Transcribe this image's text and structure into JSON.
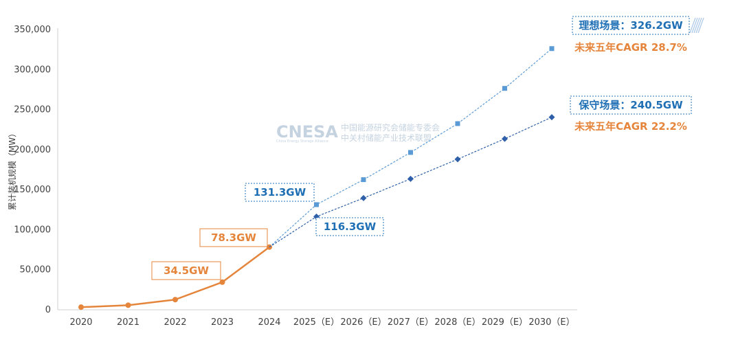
{
  "chart_data": {
    "type": "line",
    "ylabel": "累计装机规模（MW）",
    "ylim": [
      0,
      350000
    ],
    "yticks": [
      0,
      50000,
      100000,
      150000,
      200000,
      250000,
      300000,
      350000
    ],
    "ytick_labels": [
      "0",
      "50,000",
      "100,000",
      "150,000",
      "200,000",
      "250,000",
      "300,000",
      "350,000"
    ],
    "categories": [
      "2020",
      "2021",
      "2022",
      "2023",
      "2024",
      "2025（E）",
      "2026（E）",
      "2027（E）",
      "2028（E）",
      "2029（E）",
      "2030（E）"
    ],
    "series": [
      {
        "name": "historical",
        "color": "#e5853b",
        "style": "solid",
        "marker": "circle",
        "values": [
          3300,
          5700,
          12700,
          34500,
          78300,
          null,
          null,
          null,
          null,
          null,
          null
        ]
      },
      {
        "name": "ideal",
        "color": "#5b9bd5",
        "style": "dashed",
        "marker": "square",
        "values": [
          null,
          null,
          null,
          null,
          78300,
          131300,
          162500,
          196500,
          232500,
          276500,
          326200
        ]
      },
      {
        "name": "conservative",
        "color": "#2e5fa8",
        "style": "dashed",
        "marker": "diamond",
        "values": [
          null,
          null,
          null,
          null,
          78300,
          116300,
          139500,
          163500,
          188000,
          213500,
          240500
        ]
      }
    ],
    "annotations": [
      {
        "id": "hist-2023",
        "text": "34.5GW",
        "color": "#e5853b"
      },
      {
        "id": "hist-2024",
        "text": "78.3GW",
        "color": "#e5853b"
      },
      {
        "id": "ideal-2025",
        "text": "131.3GW",
        "color": "#1f6fb5"
      },
      {
        "id": "cons-2025",
        "text": "116.3GW",
        "color": "#1f6fb5"
      },
      {
        "id": "ideal-2030",
        "text": "理想场景：326.2GW",
        "color": "#1f6fb5"
      },
      {
        "id": "ideal-cagr",
        "text": "未来五年CAGR 28.7%",
        "color": "#e5853b"
      },
      {
        "id": "cons-2030",
        "text": "保守场景：240.5GW",
        "color": "#1f6fb5"
      },
      {
        "id": "cons-cagr",
        "text": "未来五年CAGR 22.2%",
        "color": "#e5853b"
      }
    ]
  },
  "watermark": {
    "logo": "CNESA",
    "line1": "中国能源研究会储能专委会",
    "line2": "中关村储能产业技术联盟",
    "tagline": "China Energy Storage Alliance"
  }
}
